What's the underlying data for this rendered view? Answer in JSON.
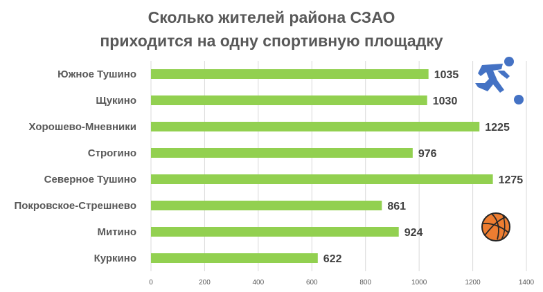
{
  "chart_data": {
    "type": "bar",
    "orientation": "horizontal",
    "title_lines": [
      "Сколько жителей района СЗАО",
      "приходится на одну спортивную площадку"
    ],
    "categories": [
      "Южное Тушино",
      "Щукино",
      "Хорошево-Мневники",
      "Строгино",
      "Северное Тушино",
      "Покровское-Стрешнево",
      "Митино",
      "Куркино"
    ],
    "values": [
      1035,
      1030,
      1225,
      976,
      1275,
      861,
      924,
      622
    ],
    "xlim": [
      0,
      1400
    ],
    "xticks": [
      0,
      200,
      400,
      600,
      800,
      1000,
      1200,
      1400
    ],
    "grid": "vertical",
    "legend": "none",
    "bar_color": "#92d050",
    "decorations": [
      "football-player-icon",
      "volleyball-icon"
    ]
  }
}
